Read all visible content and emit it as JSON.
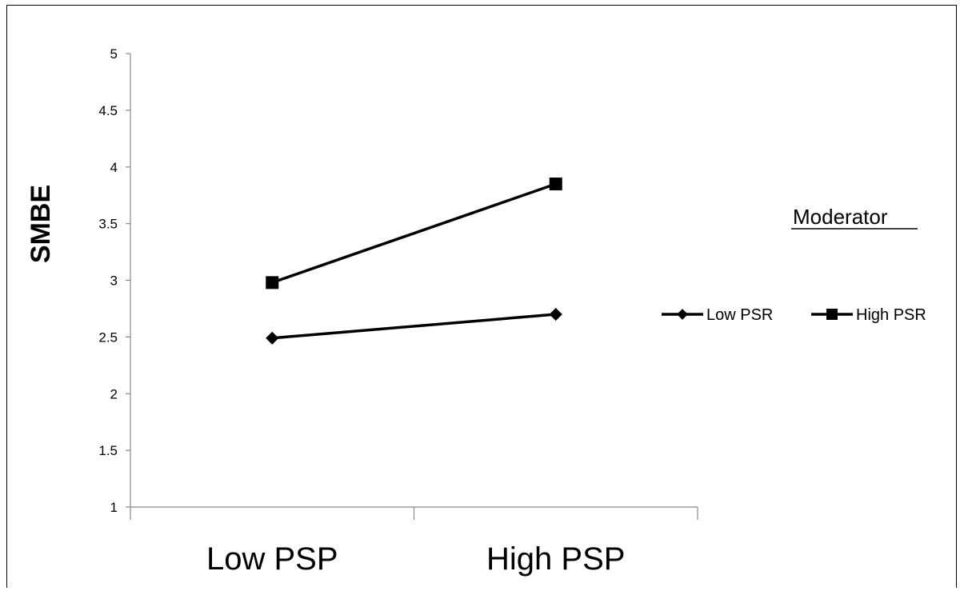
{
  "chart_data": {
    "type": "line",
    "categories": [
      "Low PSP",
      "High PSP"
    ],
    "ylabel": "SMBE",
    "xlabel": "",
    "ylim": [
      1,
      5
    ],
    "yticks": [
      "1",
      "1.5",
      "2",
      "2.5",
      "3",
      "3.5",
      "4",
      "4.5",
      "5"
    ],
    "legend_title": "Moderator",
    "legend_position": "right",
    "grid": false,
    "series": [
      {
        "name": "Low PSR",
        "marker": "diamond",
        "color": "#000000",
        "values": [
          2.49,
          2.7
        ]
      },
      {
        "name": "High PSR",
        "marker": "square",
        "color": "#000000",
        "values": [
          2.98,
          3.85
        ]
      }
    ]
  }
}
